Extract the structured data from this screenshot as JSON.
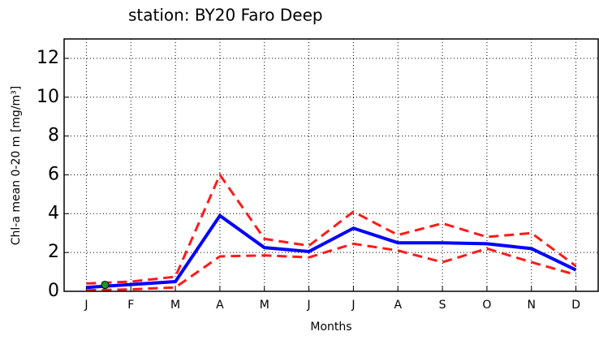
{
  "chart_data": {
    "type": "line",
    "title": "station: BY20 Faro Deep",
    "x_label": "Months",
    "y_label": "Chl-a mean 0-20 m [mg/m³]",
    "x": [
      0,
      1,
      2,
      3,
      4,
      5,
      6,
      7,
      8,
      9,
      10,
      11
    ],
    "xlim": [
      -0.5,
      11.5
    ],
    "xticks": [
      {
        "value": 0,
        "label": "J"
      },
      {
        "value": 1,
        "label": "F"
      },
      {
        "value": 2,
        "label": "M"
      },
      {
        "value": 3,
        "label": "A"
      },
      {
        "value": 4,
        "label": "M"
      },
      {
        "value": 5,
        "label": "J"
      },
      {
        "value": 6,
        "label": "J"
      },
      {
        "value": 7,
        "label": "A"
      },
      {
        "value": 8,
        "label": "S"
      },
      {
        "value": 9,
        "label": "O"
      },
      {
        "value": 10,
        "label": "N"
      },
      {
        "value": 11,
        "label": "D"
      }
    ],
    "ylim": [
      0,
      13
    ],
    "yticks": [
      0,
      2,
      4,
      6,
      8,
      10,
      12
    ],
    "grid": true,
    "series": [
      {
        "color": "#ff1a1a",
        "dashed": true,
        "values": [
          0.4,
          0.5,
          0.75,
          6.0,
          2.7,
          2.35,
          4.1,
          2.9,
          3.5,
          2.8,
          3.0,
          1.3
        ]
      },
      {
        "color": "#ff1a1a",
        "dashed": true,
        "values": [
          0.05,
          0.1,
          0.2,
          1.8,
          1.85,
          1.75,
          2.45,
          2.1,
          1.5,
          2.2,
          1.5,
          0.85
        ]
      },
      {
        "color": "#0000ff",
        "dashed": false,
        "values": [
          0.2,
          0.35,
          0.5,
          3.9,
          2.25,
          2.05,
          3.25,
          2.5,
          2.5,
          2.45,
          2.2,
          1.1
        ]
      }
    ],
    "points": {
      "color": "#1a9a1a",
      "x": [
        0.42
      ],
      "values": [
        0.33
      ]
    }
  }
}
